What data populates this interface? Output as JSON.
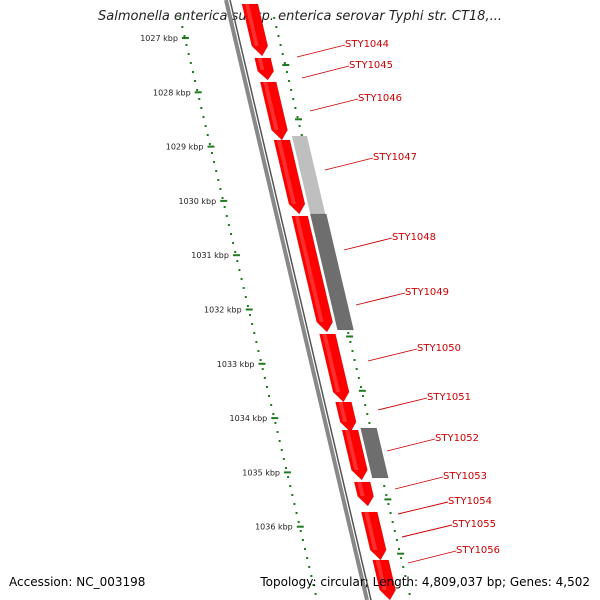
{
  "title": "Salmonella enterica subsp. enterica serovar Typhi str. CT18,...",
  "footer": {
    "accession": "Accession: NC_003198",
    "summary": "Topology: circular; Length: 4,809,037 bp; Genes: 4,502"
  },
  "colors": {
    "gene_forward": "#ff0000",
    "gene_light": "#bfbfbf",
    "gene_dark": "#6e6e6e",
    "backbone": "#888888",
    "ticks": "#1e7a1e",
    "label": "#cc0000"
  },
  "ruler": [
    {
      "label": "1027 kbp"
    },
    {
      "label": "1028 kbp"
    },
    {
      "label": "1029 kbp"
    },
    {
      "label": "1030 kbp"
    },
    {
      "label": "1031 kbp"
    },
    {
      "label": "1032 kbp"
    },
    {
      "label": "1033 kbp"
    },
    {
      "label": "1034 kbp"
    },
    {
      "label": "1035 kbp"
    },
    {
      "label": "1036 kbp"
    }
  ],
  "genes": [
    {
      "name": "STY1044",
      "strand": "forward"
    },
    {
      "name": "STY1045",
      "strand": "forward"
    },
    {
      "name": "STY1046",
      "strand": "forward"
    },
    {
      "name": "STY1047",
      "strand": "forward"
    },
    {
      "name": "STY1048",
      "strand": "forward"
    },
    {
      "name": "STY1049",
      "strand": "reverse"
    },
    {
      "name": "STY1050",
      "strand": "forward"
    },
    {
      "name": "STY1051",
      "strand": "forward"
    },
    {
      "name": "STY1052",
      "strand": "reverse"
    },
    {
      "name": "STY1053",
      "strand": "forward"
    },
    {
      "name": "STY1054",
      "strand": "forward"
    },
    {
      "name": "STY1055",
      "strand": "forward"
    },
    {
      "name": "STY1056",
      "strand": "forward"
    }
  ]
}
